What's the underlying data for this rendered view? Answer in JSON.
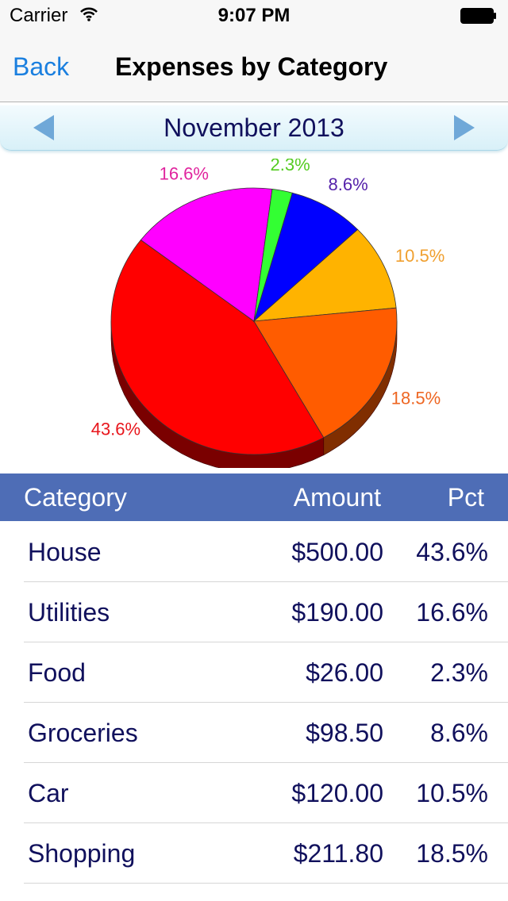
{
  "status_bar": {
    "carrier": "Carrier",
    "time": "9:07 PM"
  },
  "nav": {
    "back_label": "Back",
    "title": "Expenses by Category"
  },
  "period": {
    "label": "November 2013"
  },
  "colors": {
    "accent": "#1a7fdf",
    "header_bg": "#4e6db6",
    "text": "#10105c"
  },
  "table": {
    "headers": {
      "category": "Category",
      "amount": "Amount",
      "pct": "Pct"
    },
    "rows": [
      {
        "category": "House",
        "amount": "$500.00",
        "pct": "43.6%"
      },
      {
        "category": "Utilities",
        "amount": "$190.00",
        "pct": "16.6%"
      },
      {
        "category": "Food",
        "amount": "$26.00",
        "pct": "2.3%"
      },
      {
        "category": "Groceries",
        "amount": "$98.50",
        "pct": "8.6%"
      },
      {
        "category": "Car",
        "amount": "$120.00",
        "pct": "10.5%"
      },
      {
        "category": "Shopping",
        "amount": "$211.80",
        "pct": "18.5%"
      }
    ]
  },
  "chart_data": {
    "type": "pie",
    "title": "",
    "start_angle_deg": 60.8,
    "slices": [
      {
        "label": "House",
        "value": 43.6,
        "text": "43.6%",
        "color": "#ff0000",
        "side_color": "#7a0000",
        "label_color": "#e8161c"
      },
      {
        "label": "Utilities",
        "value": 16.6,
        "text": "16.6%",
        "color": "#ff00ff",
        "side_color": "#7a007a",
        "label_color": "#e0259e"
      },
      {
        "label": "Food",
        "value": 2.3,
        "text": "2.3%",
        "color": "#33ff33",
        "side_color": "#1a801a",
        "label_color": "#55cc22"
      },
      {
        "label": "Groceries",
        "value": 8.6,
        "text": "8.6%",
        "color": "#0000ff",
        "side_color": "#000080",
        "label_color": "#5522aa"
      },
      {
        "label": "Car",
        "value": 10.5,
        "text": "10.5%",
        "color": "#ffb300",
        "side_color": "#805900",
        "label_color": "#f0a030"
      },
      {
        "label": "Shopping",
        "value": 18.5,
        "text": "18.5%",
        "color": "#ff5c00",
        "side_color": "#802e00",
        "label_color": "#ee6622"
      }
    ]
  }
}
